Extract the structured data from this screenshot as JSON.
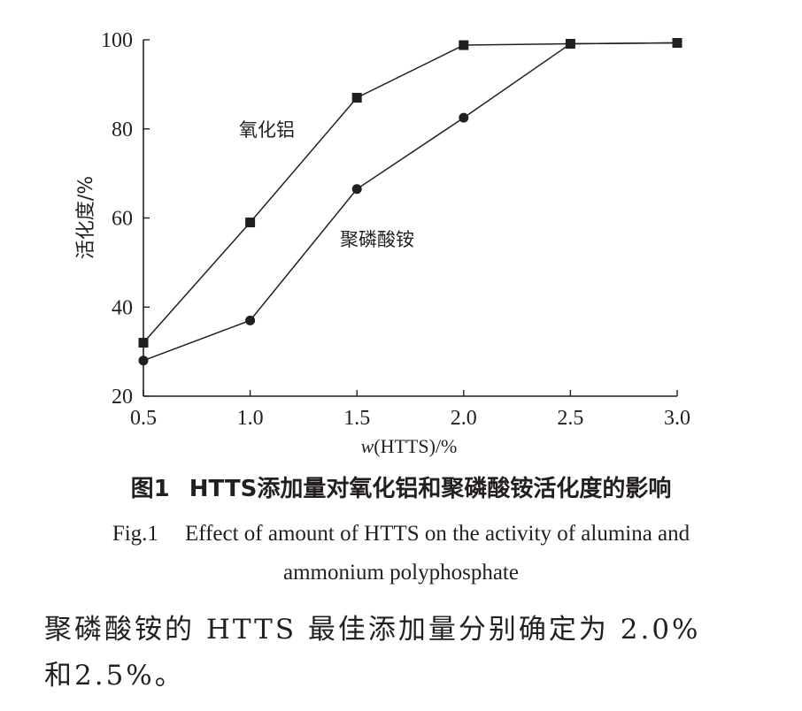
{
  "chart_data": {
    "type": "line",
    "ylabel": "活化度/%",
    "xlabel_prefix": "w",
    "xlabel_rest": "(HTTS)/%",
    "xlim": [
      0.5,
      3.0
    ],
    "ylim": [
      20,
      100
    ],
    "x_ticks": [
      "0.5",
      "1.0",
      "1.5",
      "2.0",
      "2.5",
      "3.0"
    ],
    "y_ticks": [
      "20",
      "40",
      "60",
      "80",
      "100"
    ],
    "grid": false,
    "legend": "none (series labelled inline)",
    "series": [
      {
        "name": "氧化铝",
        "marker": "square",
        "x": [
          0.5,
          1.0,
          1.5,
          2.0,
          2.5,
          3.0
        ],
        "y": [
          32,
          59,
          87,
          98.8,
          99.1,
          99.3
        ]
      },
      {
        "name": "聚磷酸铵",
        "marker": "circle",
        "x": [
          0.5,
          1.0,
          1.5,
          2.0,
          2.5,
          3.0
        ],
        "y": [
          28,
          37,
          66.5,
          82.5,
          99.1,
          99.3
        ]
      }
    ]
  },
  "caption": {
    "zh_num": "图1",
    "zh_text": "HTTS添加量对氧化铝和聚磷酸铵活化度的影响",
    "en_num": "Fig.1",
    "en_line1": "Effect of amount of HTTS on the activity of alumina and",
    "en_line2": "ammonium polyphosphate"
  },
  "body": {
    "line1": "聚磷酸铵的 HTTS 最佳添加量分别确定为 2.0%",
    "line2": "和2.5%。"
  }
}
